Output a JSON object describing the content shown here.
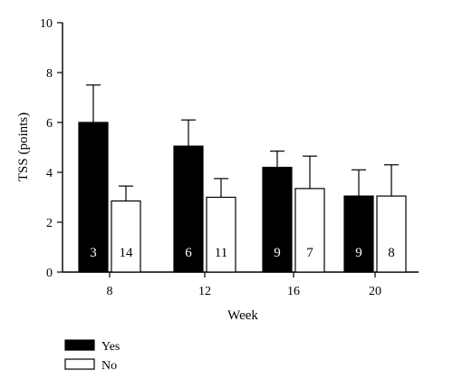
{
  "chart_data": {
    "type": "bar",
    "xlabel": "Week",
    "ylabel": "TSS (points)",
    "ylim": [
      0,
      10
    ],
    "yticks": [
      0,
      2,
      4,
      6,
      8,
      10
    ],
    "categories": [
      "8",
      "12",
      "16",
      "20"
    ],
    "series": [
      {
        "name": "Yes",
        "fill": "#000000",
        "values": [
          6.0,
          5.05,
          4.2,
          3.05
        ],
        "error_upper": [
          7.5,
          6.1,
          4.85,
          4.1
        ],
        "n": [
          "3",
          "6",
          "9",
          "9"
        ]
      },
      {
        "name": "No",
        "fill": "#ffffff",
        "values": [
          2.85,
          3.0,
          3.35,
          3.05
        ],
        "error_upper": [
          3.45,
          3.75,
          4.65,
          4.3
        ],
        "n": [
          "14",
          "11",
          "7",
          "8"
        ]
      }
    ],
    "legend": {
      "position": "bottom-left",
      "entries": [
        "Yes",
        "No"
      ]
    }
  }
}
